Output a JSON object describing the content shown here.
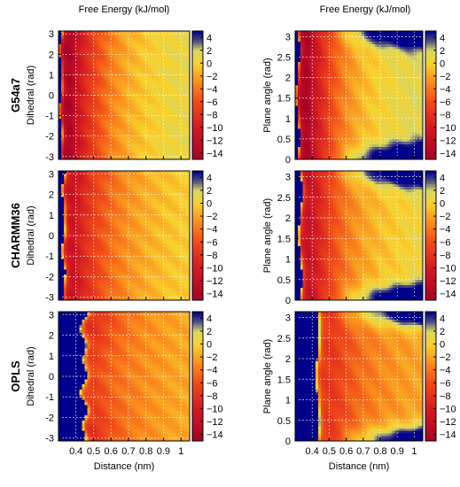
{
  "column_titles": [
    "Free Energy (kJ/mol)",
    "Free Energy (kJ/mol)"
  ],
  "row_labels": [
    "G54a7",
    "CHARMM36",
    "OPLS"
  ],
  "x_axis_label": "Distance (nm)",
  "left_y_axis_label": "Dihedral (rad)",
  "right_y_axis_label": "Plane angle (rad)",
  "colormap": {
    "stops": [
      {
        "value": -15,
        "color": "#a50026"
      },
      {
        "value": -10,
        "color": "#d41a22"
      },
      {
        "value": -6,
        "color": "#f04a18"
      },
      {
        "value": -3,
        "color": "#fa8c1c"
      },
      {
        "value": 0,
        "color": "#f7d22e"
      },
      {
        "value": 2,
        "color": "#d8d660"
      },
      {
        "value": 3.5,
        "color": "#4a4a86"
      },
      {
        "value": 5,
        "color": "#00008b"
      }
    ],
    "saturated_color": "#00008b"
  },
  "chart_data": [
    {
      "type": "heatmap",
      "row": "G54a7",
      "column": 0,
      "xlabel": "",
      "ylabel": "Dihedral (rad)",
      "xlim": [
        0.3,
        1.05
      ],
      "ylim": [
        -3.14,
        3.14
      ],
      "x_ticks": [
        0.4,
        0.5,
        0.6,
        0.7,
        0.8,
        0.9,
        1
      ],
      "y_ticks": [
        -3,
        -2,
        -1,
        0,
        1,
        2,
        3
      ],
      "colorbar_ticks": [
        4,
        2,
        0,
        -2,
        -4,
        -6,
        -8,
        -10,
        -12,
        -14
      ],
      "colorbar_range": [
        -15,
        5
      ],
      "grid": true,
      "show_x_tick_labels": false,
      "model": {
        "kind": "dihedral",
        "wall": 0.31,
        "min_x": 0.36,
        "min_value": -14.5,
        "plateau": 1.8,
        "decay": 0.22,
        "wave": 0.2
      }
    },
    {
      "type": "heatmap",
      "row": "G54a7",
      "column": 1,
      "xlabel": "",
      "ylabel": "Plane angle (rad)",
      "xlim": [
        0.3,
        1.05
      ],
      "ylim": [
        0,
        3.14
      ],
      "x_ticks": [
        0.4,
        0.5,
        0.6,
        0.7,
        0.8,
        0.9,
        1
      ],
      "y_ticks": [
        0,
        0.5,
        1,
        1.5,
        2,
        2.5,
        3
      ],
      "colorbar_ticks": [
        4,
        2,
        0,
        -2,
        -4,
        -6,
        -8,
        -10,
        -12,
        -14
      ],
      "colorbar_range": [
        -15,
        5
      ],
      "grid": true,
      "show_x_tick_labels": false,
      "model": {
        "kind": "angle",
        "wall": 0.315,
        "min_x": 0.37,
        "min_value": -14.5,
        "plateau": 2.0,
        "decay": 0.2
      }
    },
    {
      "type": "heatmap",
      "row": "CHARMM36",
      "column": 0,
      "xlabel": "",
      "ylabel": "Dihedral (rad)",
      "xlim": [
        0.3,
        1.05
      ],
      "ylim": [
        -3.14,
        3.14
      ],
      "x_ticks": [
        0.4,
        0.5,
        0.6,
        0.7,
        0.8,
        0.9,
        1
      ],
      "y_ticks": [
        -3,
        -2,
        -1,
        0,
        1,
        2,
        3
      ],
      "colorbar_ticks": [
        4,
        2,
        0,
        -2,
        -4,
        -6,
        -8,
        -10,
        -12,
        -14
      ],
      "colorbar_range": [
        -15,
        5
      ],
      "grid": true,
      "show_x_tick_labels": false,
      "model": {
        "kind": "dihedral",
        "wall": 0.325,
        "min_x": 0.38,
        "min_value": -11.5,
        "plateau": 0.8,
        "decay": 0.26,
        "wave": 0.25
      }
    },
    {
      "type": "heatmap",
      "row": "CHARMM36",
      "column": 1,
      "xlabel": "",
      "ylabel": "Plane angle (rad)",
      "xlim": [
        0.3,
        1.05
      ],
      "ylim": [
        0,
        3.14
      ],
      "x_ticks": [
        0.4,
        0.5,
        0.6,
        0.7,
        0.8,
        0.9,
        1
      ],
      "y_ticks": [
        0,
        0.5,
        1,
        1.5,
        2,
        2.5,
        3
      ],
      "colorbar_ticks": [
        4,
        2,
        0,
        -2,
        -4,
        -6,
        -8,
        -10,
        -12,
        -14
      ],
      "colorbar_range": [
        -15,
        5
      ],
      "grid": true,
      "show_x_tick_labels": false,
      "model": {
        "kind": "angle",
        "wall": 0.33,
        "min_x": 0.39,
        "min_value": -11.5,
        "plateau": 1.4,
        "decay": 0.24
      }
    },
    {
      "type": "heatmap",
      "row": "OPLS",
      "column": 0,
      "xlabel": "Distance (nm)",
      "ylabel": "Dihedral (rad)",
      "xlim": [
        0.3,
        1.05
      ],
      "ylim": [
        -3.14,
        3.14
      ],
      "x_ticks": [
        0.4,
        0.5,
        0.6,
        0.7,
        0.8,
        0.9,
        1
      ],
      "y_ticks": [
        -3,
        -2,
        -1,
        0,
        1,
        2,
        3
      ],
      "colorbar_ticks": [
        4,
        2,
        0,
        -2,
        -4,
        -6,
        -8,
        -10,
        -12,
        -14
      ],
      "colorbar_range": [
        -15,
        5
      ],
      "grid": true,
      "show_x_tick_labels": true,
      "model": {
        "kind": "dihedral",
        "wall": 0.43,
        "min_x": 0.5,
        "min_value": -7.5,
        "plateau": -1.0,
        "decay": 0.25,
        "wave": 1.0
      }
    },
    {
      "type": "heatmap",
      "row": "OPLS",
      "column": 1,
      "xlabel": "Distance (nm)",
      "ylabel": "Plane angle (rad)",
      "xlim": [
        0.3,
        1.05
      ],
      "ylim": [
        0,
        3.14
      ],
      "x_ticks": [
        0.4,
        0.5,
        0.6,
        0.7,
        0.8,
        0.9,
        1
      ],
      "y_ticks": [
        0,
        0.5,
        1,
        1.5,
        2,
        2.5,
        3
      ],
      "colorbar_ticks": [
        4,
        2,
        0,
        -2,
        -4,
        -6,
        -8,
        -10,
        -12,
        -14
      ],
      "colorbar_range": [
        -15,
        5
      ],
      "grid": true,
      "show_x_tick_labels": true,
      "model": {
        "kind": "angle",
        "wall": 0.43,
        "min_x": 0.52,
        "min_value": -7.5,
        "plateau": -1.2,
        "decay": 0.25
      }
    }
  ]
}
